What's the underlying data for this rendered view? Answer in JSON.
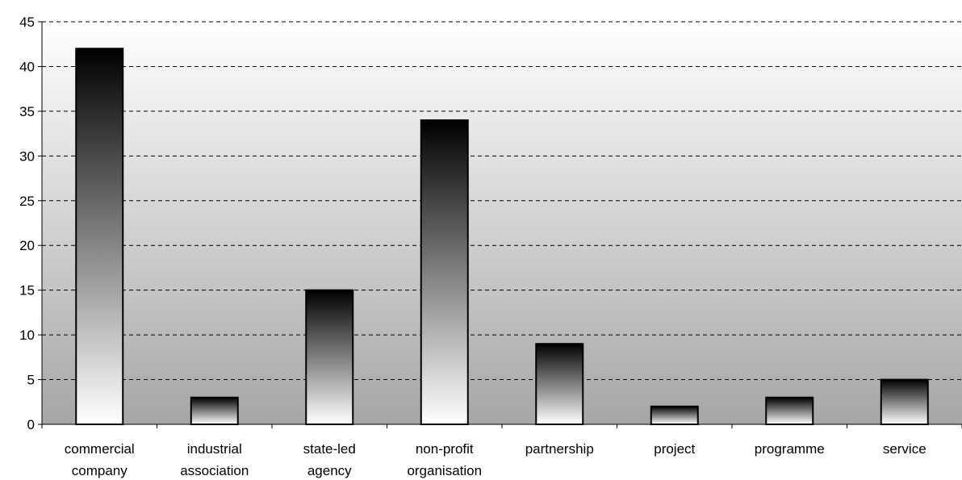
{
  "chart_data": {
    "type": "bar",
    "title": "",
    "xlabel": "",
    "ylabel": "",
    "categories": [
      [
        "commercial",
        "company"
      ],
      [
        "industrial",
        "association"
      ],
      [
        "state-led",
        "agency"
      ],
      [
        "non-profit",
        "organisation"
      ],
      [
        "partnership"
      ],
      [
        "project"
      ],
      [
        "programme"
      ],
      [
        "service"
      ]
    ],
    "values": [
      42,
      3,
      15,
      34,
      9,
      2,
      3,
      5
    ],
    "ylim": [
      0,
      45
    ],
    "yticks": [
      0,
      5,
      10,
      15,
      20,
      25,
      30,
      35,
      40,
      45
    ],
    "grid": "horizontal dashed",
    "legend": "none",
    "colors": {
      "plot_bg_top": "#ffffff",
      "plot_bg_bottom": "#a6a6a6",
      "bar_top": "#000000",
      "bar_bottom": "#ffffff",
      "bar_stroke": "#000000",
      "grid": "#000000"
    }
  }
}
